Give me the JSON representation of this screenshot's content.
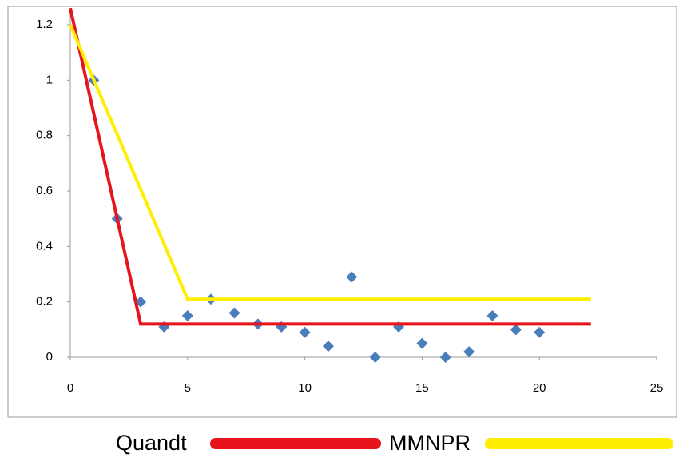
{
  "chart_data": {
    "type": "scatter",
    "points": {
      "color": "#4a7ebb",
      "x": [
        1,
        2,
        3,
        4,
        5,
        6,
        7,
        8,
        9,
        10,
        11,
        12,
        13,
        14,
        15,
        16,
        17,
        18,
        19,
        20
      ],
      "y": [
        1.0,
        0.5,
        0.2,
        0.11,
        0.15,
        0.21,
        0.16,
        0.12,
        0.11,
        0.09,
        0.04,
        0.29,
        0,
        0.11,
        0.05,
        0,
        0.02,
        0.15,
        0.1,
        0.09
      ]
    },
    "lines": [
      {
        "name": "Quandt",
        "color": "#e8141c",
        "x": [
          0,
          3,
          22.2
        ],
        "y": [
          1.26,
          0.12,
          0.12
        ]
      },
      {
        "name": "MMNPR",
        "color": "#ffee00",
        "x": [
          0,
          5,
          22.2
        ],
        "y": [
          1.2,
          0.21,
          0.21
        ]
      }
    ],
    "xlim": [
      0,
      25
    ],
    "xticks": [
      0,
      5,
      10,
      15,
      20,
      25
    ],
    "ylim": [
      0,
      1.2
    ],
    "yticks": [
      0,
      0.2,
      0.4,
      0.6,
      0.8,
      1,
      1.2
    ]
  }
}
